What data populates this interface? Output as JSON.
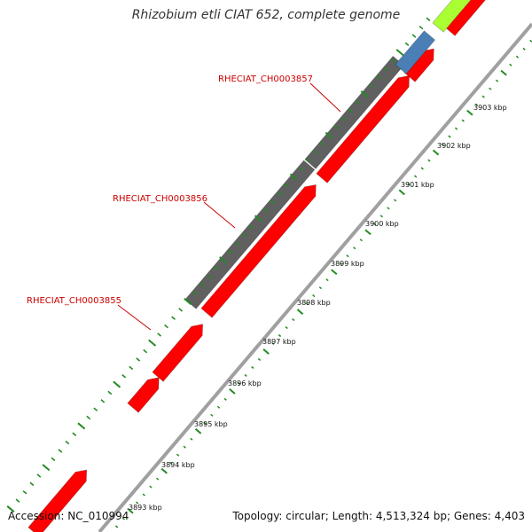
{
  "title": "Rhizobium etli CIAT 652, complete genome",
  "footer": {
    "accession_label": "Accession:",
    "accession_value": "NC_010994",
    "topology_label": "Topology:",
    "topology_value": "circular",
    "length_label": "Length:",
    "length_value": "4,513,324 bp",
    "genes_label": "Genes:",
    "genes_value": "4,403"
  },
  "colors": {
    "cds_reverse": "#ff0000",
    "cds_forward_gray": "#606060",
    "cds_blue": "#4a7fb5",
    "cds_green": "#aaff33",
    "backbone": "#a0a0a0",
    "tick": "#228b22",
    "gene_label": "#cc0000"
  },
  "gene_labels": [
    "RHECIAT_CH0003855",
    "RHECIAT_CH0003856",
    "RHECIAT_CH0003857"
  ],
  "scale_labels": [
    "3893 kbp",
    "3894 kbp",
    "3895 kbp",
    "3896 kbp",
    "3897 kbp",
    "3898 kbp",
    "3899 kbp",
    "3900 kbp",
    "3901 kbp",
    "3902 kbp",
    "3903 kbp"
  ]
}
